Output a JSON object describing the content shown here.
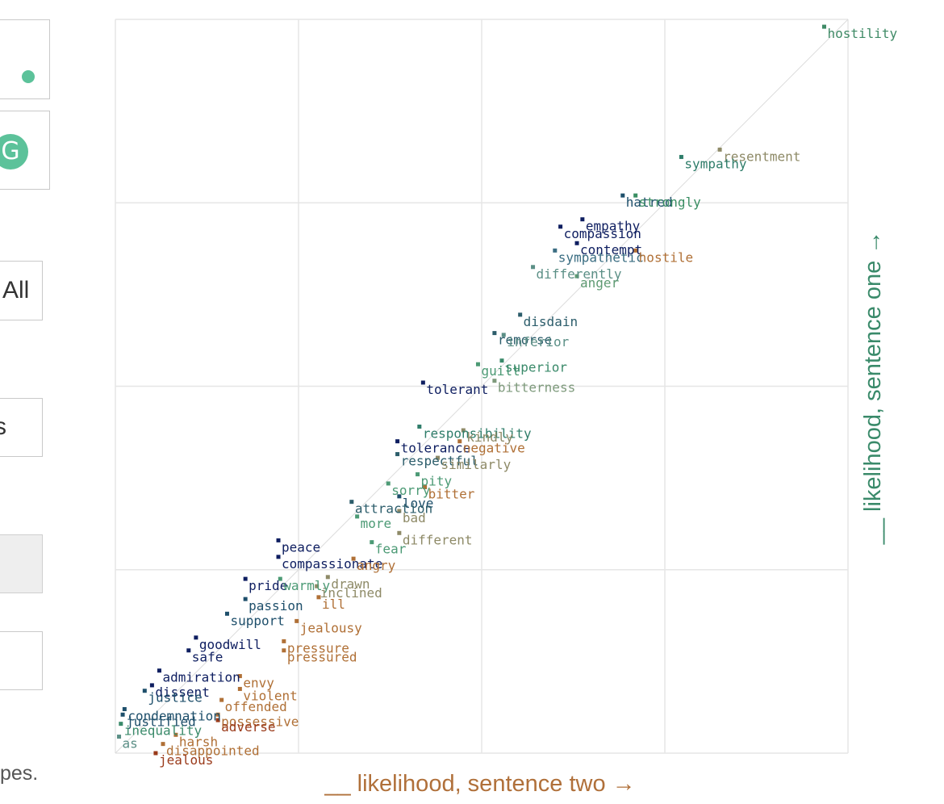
{
  "controls": {
    "all_label": "All",
    "s_label": "s",
    "g_icon_glyph": "G"
  },
  "footnote": "pes.",
  "colors": {
    "accent": "#5cc29a",
    "axis_x": "#b0703a",
    "axis_y": "#3a8a6a"
  },
  "chart_data": {
    "type": "scatter",
    "xlabel": "__ likelihood, sentence two →",
    "ylabel": "__ likelihood, sentence one →",
    "xlim": [
      0,
      4
    ],
    "ylim": [
      0,
      4
    ],
    "grid": true,
    "diagonal": true,
    "labeled_points": [
      {
        "t": "hostility",
        "x": 3.87,
        "y": 3.96,
        "c": "#3f8a66"
      },
      {
        "t": "resentment",
        "x": 3.3,
        "y": 3.29,
        "c": "#8e8a67"
      },
      {
        "t": "sympathy",
        "x": 3.09,
        "y": 3.25,
        "c": "#2f7d6a"
      },
      {
        "t": "hatred",
        "x": 2.77,
        "y": 3.04,
        "c": "#1e4f6b"
      },
      {
        "t": "strongly",
        "x": 2.84,
        "y": 3.04,
        "c": "#3a8e63"
      },
      {
        "t": "compassion",
        "x": 2.43,
        "y": 2.87,
        "c": "#0e1e60"
      },
      {
        "t": "empathy",
        "x": 2.55,
        "y": 2.91,
        "c": "#0e1e60"
      },
      {
        "t": "sympathetic",
        "x": 2.4,
        "y": 2.74,
        "c": "#3a6d82"
      },
      {
        "t": "contempt",
        "x": 2.52,
        "y": 2.78,
        "c": "#0e1e60"
      },
      {
        "t": "hostile",
        "x": 2.84,
        "y": 2.74,
        "c": "#b07036"
      },
      {
        "t": "differently",
        "x": 2.28,
        "y": 2.65,
        "c": "#5b8f86"
      },
      {
        "t": "anger",
        "x": 2.52,
        "y": 2.6,
        "c": "#5e9a72"
      },
      {
        "t": "remorse",
        "x": 2.07,
        "y": 2.29,
        "c": "#2c5d6b"
      },
      {
        "t": "disdain",
        "x": 2.21,
        "y": 2.39,
        "c": "#2c5d6b"
      },
      {
        "t": "inferior",
        "x": 2.12,
        "y": 2.28,
        "c": "#5b8f86"
      },
      {
        "t": "guilt",
        "x": 1.98,
        "y": 2.12,
        "c": "#4c9a75"
      },
      {
        "t": "superior",
        "x": 2.11,
        "y": 2.14,
        "c": "#3a8a6a"
      },
      {
        "t": "bitterness",
        "x": 2.07,
        "y": 2.03,
        "c": "#7e9a7c"
      },
      {
        "t": "tolerant",
        "x": 1.68,
        "y": 2.02,
        "c": "#0e1e60"
      },
      {
        "t": "responsibility",
        "x": 1.66,
        "y": 1.78,
        "c": "#2f7d6a"
      },
      {
        "t": "kindly",
        "x": 1.9,
        "y": 1.76,
        "c": "#8e8a67"
      },
      {
        "t": "tolerance",
        "x": 1.54,
        "y": 1.7,
        "c": "#0e1e60"
      },
      {
        "t": "negative",
        "x": 1.88,
        "y": 1.7,
        "c": "#b07036"
      },
      {
        "t": "respectful",
        "x": 1.54,
        "y": 1.63,
        "c": "#2c5d6b"
      },
      {
        "t": "similarly",
        "x": 1.76,
        "y": 1.61,
        "c": "#8e8a67"
      },
      {
        "t": "pity",
        "x": 1.65,
        "y": 1.52,
        "c": "#4c9a75"
      },
      {
        "t": "sorry",
        "x": 1.49,
        "y": 1.47,
        "c": "#4c9a75"
      },
      {
        "t": "love",
        "x": 1.55,
        "y": 1.4,
        "c": "#1e4f6b"
      },
      {
        "t": "bitter",
        "x": 1.69,
        "y": 1.45,
        "c": "#b07036"
      },
      {
        "t": "attraction",
        "x": 1.29,
        "y": 1.37,
        "c": "#2c5d6b"
      },
      {
        "t": "bad",
        "x": 1.55,
        "y": 1.32,
        "c": "#8e8a67"
      },
      {
        "t": "more",
        "x": 1.32,
        "y": 1.29,
        "c": "#4c9a75"
      },
      {
        "t": "different",
        "x": 1.55,
        "y": 1.2,
        "c": "#8e8a67"
      },
      {
        "t": "fear",
        "x": 1.4,
        "y": 1.15,
        "c": "#4c9a75"
      },
      {
        "t": "peace",
        "x": 0.89,
        "y": 1.16,
        "c": "#0e1e60"
      },
      {
        "t": "compassionate",
        "x": 0.89,
        "y": 1.07,
        "c": "#0e1e60"
      },
      {
        "t": "angry",
        "x": 1.3,
        "y": 1.06,
        "c": "#b07036"
      },
      {
        "t": "pride",
        "x": 0.71,
        "y": 0.95,
        "c": "#0e1e60"
      },
      {
        "t": "warmly",
        "x": 0.9,
        "y": 0.95,
        "c": "#4c9a75"
      },
      {
        "t": "drawn",
        "x": 1.16,
        "y": 0.96,
        "c": "#8e8a67"
      },
      {
        "t": "inclined",
        "x": 1.1,
        "y": 0.91,
        "c": "#8e8a67"
      },
      {
        "t": "passion",
        "x": 0.71,
        "y": 0.84,
        "c": "#1e4f6b"
      },
      {
        "t": "ill",
        "x": 1.11,
        "y": 0.85,
        "c": "#b07036"
      },
      {
        "t": "support",
        "x": 0.61,
        "y": 0.76,
        "c": "#1e4f6b"
      },
      {
        "t": "jealousy",
        "x": 0.99,
        "y": 0.72,
        "c": "#b07036"
      },
      {
        "t": "goodwill",
        "x": 0.44,
        "y": 0.63,
        "c": "#0e1e60"
      },
      {
        "t": "pressure",
        "x": 0.92,
        "y": 0.61,
        "c": "#b07036"
      },
      {
        "t": "pressured",
        "x": 0.92,
        "y": 0.56,
        "c": "#b07036"
      },
      {
        "t": "safe",
        "x": 0.4,
        "y": 0.56,
        "c": "#0e1e60"
      },
      {
        "t": "admiration",
        "x": 0.24,
        "y": 0.45,
        "c": "#0e1e60"
      },
      {
        "t": "envy",
        "x": 0.68,
        "y": 0.42,
        "c": "#b07036"
      },
      {
        "t": "dissent",
        "x": 0.2,
        "y": 0.37,
        "c": "#0e1e60"
      },
      {
        "t": "justice",
        "x": 0.16,
        "y": 0.34,
        "c": "#1e4f6b"
      },
      {
        "t": "violent",
        "x": 0.68,
        "y": 0.35,
        "c": "#b07036"
      },
      {
        "t": "offended",
        "x": 0.58,
        "y": 0.29,
        "c": "#b07036"
      },
      {
        "t": "condemnation",
        "x": 0.05,
        "y": 0.24,
        "c": "#1e4f6b"
      },
      {
        "t": "justified",
        "x": 0.04,
        "y": 0.21,
        "c": "#1e4f6b"
      },
      {
        "t": "possessive",
        "x": 0.56,
        "y": 0.21,
        "c": "#b07036"
      },
      {
        "t": "adverse",
        "x": 0.56,
        "y": 0.18,
        "c": "#9a3a1a"
      },
      {
        "t": "inequality",
        "x": 0.03,
        "y": 0.16,
        "c": "#3a8a6a"
      },
      {
        "t": "as",
        "x": 0.02,
        "y": 0.09,
        "c": "#5b8f86"
      },
      {
        "t": "harsh",
        "x": 0.33,
        "y": 0.1,
        "c": "#b07036"
      },
      {
        "t": "disappointed",
        "x": 0.26,
        "y": 0.05,
        "c": "#b07036"
      },
      {
        "t": "jealous",
        "x": 0.22,
        "y": 0.0,
        "c": "#9a3a1a"
      }
    ]
  }
}
